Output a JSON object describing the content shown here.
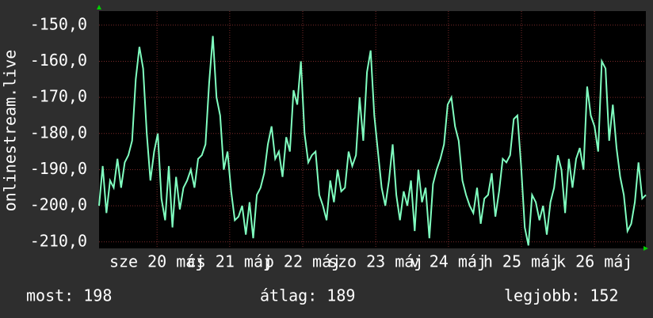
{
  "chart_data": {
    "type": "line",
    "y_label": "onlinestream.live",
    "ylim": [
      -211.8,
      -146.1
    ],
    "yticks": [
      {
        "value": -150,
        "label": "-150,0"
      },
      {
        "value": -160,
        "label": "-160,0"
      },
      {
        "value": -170,
        "label": "-170,0"
      },
      {
        "value": -180,
        "label": "-180,0"
      },
      {
        "value": -190,
        "label": "-190,0"
      },
      {
        "value": -200,
        "label": "-200,0"
      },
      {
        "value": -210,
        "label": "-210,0"
      }
    ],
    "xlim": [
      0,
      149
    ],
    "xticks": [
      {
        "value": 15.8,
        "label": "sze 20 máj"
      },
      {
        "value": 35.6,
        "label": "cs 21 máj"
      },
      {
        "value": 55.5,
        "label": "p 22 máj"
      },
      {
        "value": 75.4,
        "label": "szo 23 máj"
      },
      {
        "value": 95.2,
        "label": "v 24 máj"
      },
      {
        "value": 115.1,
        "label": "h 25 máj"
      },
      {
        "value": 135,
        "label": "k 26 máj"
      }
    ],
    "grid": true,
    "series": [
      {
        "color": "#80ffc0",
        "values": [
          -200,
          -189,
          -202,
          -193,
          -195,
          -187,
          -195,
          -188,
          -186,
          -182,
          -165,
          -156,
          -162,
          -180,
          -193,
          -185,
          -180,
          -198,
          -204,
          -189,
          -206,
          -192,
          -201,
          -195,
          -193,
          -190,
          -195,
          -187,
          -186,
          -183,
          -166,
          -153,
          -170,
          -175,
          -190,
          -185,
          -196,
          -204,
          -203,
          -200,
          -208,
          -199,
          -209,
          -197,
          -195,
          -191,
          -183,
          -178,
          -187,
          -185,
          -192,
          -181,
          -185,
          -168,
          -172,
          -160,
          -180,
          -188,
          -186,
          -185,
          -197,
          -200,
          -204,
          -193,
          -199,
          -190,
          -196,
          -195,
          -185,
          -189,
          -186,
          -170,
          -182,
          -163,
          -157,
          -175,
          -185,
          -195,
          -200,
          -193,
          -183,
          -197,
          -204,
          -196,
          -200,
          -193,
          -207,
          -190,
          -199,
          -195,
          -209,
          -194,
          -190,
          -187,
          -183,
          -172,
          -170,
          -178,
          -182,
          -193,
          -197,
          -200,
          -202,
          -195,
          -205,
          -198,
          -197,
          -191,
          -203,
          -196,
          -187,
          -188,
          -186,
          -176,
          -175,
          -189,
          -206,
          -211,
          -197,
          -199,
          -204,
          -200,
          -208,
          -199,
          -195,
          -186,
          -190,
          -202,
          -187,
          -195,
          -187,
          -184,
          -190,
          -167,
          -175,
          -178,
          -185,
          -160,
          -162,
          -182,
          -172,
          -184,
          -192,
          -197,
          -207,
          -205,
          -199,
          -188,
          -198,
          -197
        ]
      }
    ],
    "footer": {
      "current": "most: 198",
      "average": "átlag: 189",
      "best": "legjobb: 152"
    }
  }
}
